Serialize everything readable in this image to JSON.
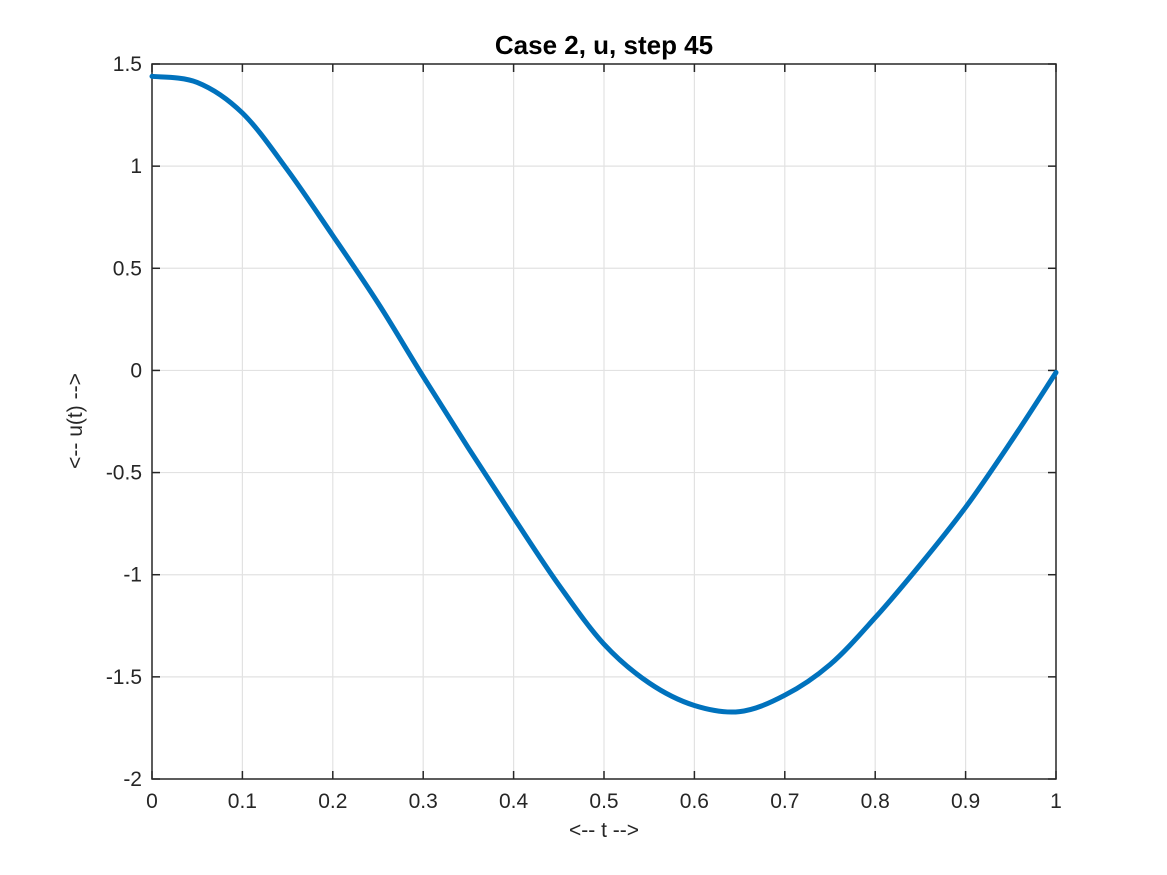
{
  "figure": {
    "background": "#ffffff"
  },
  "chart_data": {
    "type": "line",
    "title": "Case 2, u, step 45",
    "xlabel": "<-- t -->",
    "ylabel": "<-- u(t) -->",
    "xlim": [
      0,
      1
    ],
    "ylim": [
      -2,
      1.5
    ],
    "xticks": [
      0,
      0.1,
      0.2,
      0.3,
      0.4,
      0.5,
      0.6,
      0.7,
      0.8,
      0.9,
      1
    ],
    "xtick_labels": [
      "0",
      "0.1",
      "0.2",
      "0.3",
      "0.4",
      "0.5",
      "0.6",
      "0.7",
      "0.8",
      "0.9",
      "1"
    ],
    "yticks": [
      -2,
      -1.5,
      -1,
      -0.5,
      0,
      0.5,
      1,
      1.5
    ],
    "ytick_labels": [
      "-2",
      "-1.5",
      "-1",
      "-0.5",
      "0",
      "0.5",
      "1",
      "1.5"
    ],
    "grid": true,
    "legend": false,
    "axis_color": "#262626",
    "grid_color": "#e2e2e2",
    "series": [
      {
        "name": "u",
        "color": "#0072bd",
        "line_width": 5,
        "x": [
          0,
          0.05,
          0.1,
          0.15,
          0.2,
          0.25,
          0.3,
          0.35,
          0.4,
          0.45,
          0.5,
          0.55,
          0.6,
          0.65,
          0.7,
          0.75,
          0.8,
          0.85,
          0.9,
          0.95,
          1
        ],
        "y": [
          1.44,
          1.41,
          1.26,
          0.98,
          0.66,
          0.33,
          -0.03,
          -0.38,
          -0.72,
          -1.05,
          -1.34,
          -1.53,
          -1.64,
          -1.67,
          -1.59,
          -1.44,
          -1.21,
          -0.95,
          -0.67,
          -0.35,
          -0.01
        ]
      }
    ]
  }
}
